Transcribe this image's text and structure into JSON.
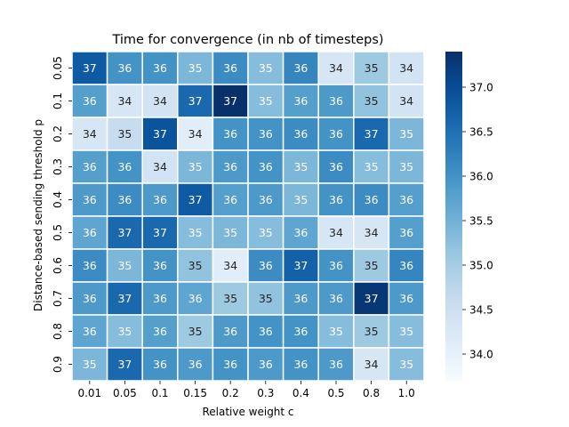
{
  "chart_data": {
    "type": "heatmap",
    "title": "Time for convergence (in nb of timesteps)",
    "xlabel": "Relative weight c",
    "ylabel": "Distance-based sending threshold p",
    "x_categories": [
      "0.01",
      "0.05",
      "0.1",
      "0.15",
      "0.2",
      "0.3",
      "0.4",
      "0.5",
      "0.8",
      "1.0"
    ],
    "y_categories": [
      "0.05",
      "0.1",
      "0.2",
      "0.3",
      "0.4",
      "0.5",
      "0.6",
      "0.7",
      "0.8",
      "0.9"
    ],
    "display_values": [
      [
        37,
        36,
        36,
        35,
        36,
        35,
        36,
        34,
        35,
        34
      ],
      [
        36,
        34,
        34,
        37,
        37,
        35,
        36,
        36,
        35,
        34
      ],
      [
        34,
        35,
        37,
        34,
        36,
        36,
        36,
        36,
        37,
        35
      ],
      [
        36,
        36,
        34,
        35,
        36,
        36,
        35,
        36,
        35,
        35
      ],
      [
        36,
        36,
        36,
        37,
        36,
        36,
        35,
        36,
        36,
        36
      ],
      [
        36,
        37,
        37,
        35,
        35,
        35,
        36,
        34,
        34,
        36
      ],
      [
        36,
        35,
        36,
        35,
        34,
        36,
        37,
        36,
        35,
        36
      ],
      [
        36,
        37,
        36,
        36,
        35,
        35,
        36,
        36,
        37,
        36
      ],
      [
        36,
        35,
        36,
        35,
        36,
        36,
        36,
        35,
        35,
        35
      ],
      [
        35,
        37,
        36,
        36,
        36,
        36,
        36,
        36,
        34,
        35
      ]
    ],
    "values": [
      [
        36.8,
        36.0,
        36.0,
        35.4,
        36.1,
        35.3,
        36.2,
        34.3,
        35.1,
        34.4
      ],
      [
        35.8,
        34.3,
        34.4,
        36.6,
        37.4,
        35.3,
        35.8,
        35.9,
        35.2,
        34.4
      ],
      [
        34.3,
        34.6,
        36.9,
        34.1,
        36.0,
        36.0,
        36.1,
        36.0,
        36.6,
        35.4
      ],
      [
        35.8,
        36.0,
        34.4,
        35.4,
        35.9,
        36.0,
        35.4,
        36.1,
        35.3,
        35.4
      ],
      [
        35.9,
        36.1,
        35.9,
        36.8,
        35.8,
        35.9,
        35.4,
        36.0,
        36.1,
        35.8
      ],
      [
        35.7,
        36.6,
        36.6,
        35.3,
        35.4,
        35.3,
        35.7,
        34.3,
        34.3,
        35.8
      ],
      [
        36.1,
        35.4,
        36.0,
        35.2,
        34.1,
        36.1,
        36.7,
        36.0,
        35.1,
        36.2
      ],
      [
        35.9,
        36.6,
        35.9,
        35.7,
        35.1,
        35.2,
        35.9,
        35.9,
        37.3,
        35.9
      ],
      [
        35.7,
        35.3,
        35.8,
        35.1,
        35.9,
        36.0,
        36.0,
        35.3,
        35.1,
        35.3
      ],
      [
        35.4,
        36.6,
        36.0,
        35.9,
        36.0,
        35.9,
        36.0,
        35.9,
        34.3,
        35.3
      ]
    ],
    "vmin": 33.7,
    "vmax": 37.4,
    "colormap": "Blues",
    "colorbar_ticks": [
      "34.0",
      "34.5",
      "35.0",
      "35.5",
      "36.0",
      "36.5",
      "37.0"
    ],
    "colorbar_tick_values": [
      34.0,
      34.5,
      35.0,
      35.5,
      36.0,
      36.5,
      37.0
    ]
  }
}
